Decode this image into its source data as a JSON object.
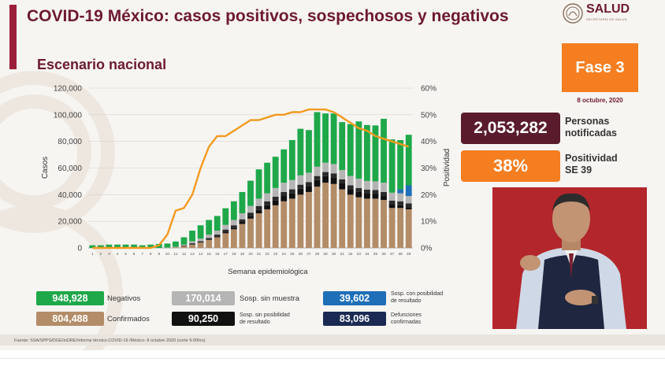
{
  "header": {
    "title": "COVID-19 México: casos positivos, sospechosos y negativos",
    "subtitle": "Escenario nacional",
    "logo_text": "SALUD",
    "logo_subtext": "SECRETARÍA DE SALUD"
  },
  "fase": {
    "label": "Fase 3",
    "date": "8 octubre, 2020"
  },
  "stats": {
    "personas_value": "2,053,282",
    "personas_label_1": "Personas",
    "personas_label_2": "notificadas",
    "positividad_value": "38%",
    "positividad_label_1": "Positividad",
    "positividad_label_2": "SE 39"
  },
  "legend": {
    "negativos": {
      "value": "948,928",
      "label": "Negativos"
    },
    "confirmados": {
      "value": "804,488",
      "label": "Confirmados"
    },
    "sin_muestra": {
      "value": "170,014",
      "label": "Sosp. sin muestra"
    },
    "sin_posibilidad": {
      "value": "90,250",
      "label_1": "Sosp. sin posibilidad",
      "label_2": "de resultado"
    },
    "con_posibilidad": {
      "value": "39,602",
      "label_1": "Sosp. con posibilidad",
      "label_2": "de resultado"
    },
    "defunciones": {
      "value": "83,096",
      "label_1": "Defunciones",
      "label_2": "confirmadas"
    }
  },
  "footer": "Fuente: SSA/SPPS/DGE/InDRE/Informe técnico.COVID-19 /México- 8 octubre 2020 (corte 9:00hrs)",
  "colors": {
    "negativos": "#1ea84a",
    "confirmados": "#b38c68",
    "sin_muestra": "#b5b5b5",
    "sin_posibilidad": "#111111",
    "con_posibilidad": "#1f6fb8",
    "positividad_line": "#f29a1f",
    "maroon": "#6d1a2e",
    "orange": "#f47e20"
  },
  "chart_data": {
    "type": "bar",
    "stacked": true,
    "xlabel": "Semana epidemiológica",
    "ylabel": "Casos",
    "y2label": "Positividad",
    "ylim": [
      0,
      120000
    ],
    "y2lim": [
      0,
      60
    ],
    "y_ticks": [
      "0",
      "20,000",
      "40,000",
      "60,000",
      "80,000",
      "100,000",
      "120,000"
    ],
    "y2_ticks": [
      "0%",
      "10%",
      "20%",
      "30%",
      "40%",
      "50%",
      "60%"
    ],
    "categories": [
      "1",
      "2",
      "3",
      "4",
      "5",
      "6",
      "7",
      "8",
      "9",
      "10",
      "11",
      "12",
      "13",
      "14",
      "15",
      "16",
      "17",
      "18",
      "19",
      "20",
      "21",
      "22",
      "23",
      "24",
      "25",
      "26",
      "27",
      "28",
      "29",
      "30",
      "31",
      "32",
      "33",
      "34",
      "35",
      "36",
      "37",
      "38",
      "39"
    ],
    "series": [
      {
        "name": "Confirmados",
        "values": [
          0,
          0,
          0,
          0,
          0,
          0,
          0,
          0,
          0,
          200,
          500,
          1200,
          2500,
          4000,
          6000,
          8000,
          11000,
          14000,
          18000,
          22000,
          26000,
          29000,
          32000,
          35000,
          37000,
          40000,
          42000,
          46000,
          49000,
          48000,
          44000,
          40000,
          38000,
          37000,
          37000,
          36000,
          30000,
          30000,
          29000
        ]
      },
      {
        "name": "Defunciones confirmadas",
        "values": [
          0,
          0,
          0,
          0,
          0,
          0,
          0,
          0,
          0,
          0,
          0,
          0,
          0,
          0,
          0,
          500,
          800,
          1000,
          1500,
          2000,
          2500,
          3000,
          3500,
          4000,
          4000,
          4500,
          4500,
          5000,
          5000,
          5000,
          4500,
          4000,
          4000,
          3800,
          3500,
          3000,
          2500,
          2000,
          1500
        ]
      },
      {
        "name": "Sosp. sin posibilidad de resultado",
        "values": [
          0,
          0,
          0,
          0,
          0,
          0,
          0,
          0,
          0,
          0,
          0,
          500,
          1000,
          1000,
          1500,
          1500,
          2000,
          2000,
          2000,
          2500,
          3000,
          3000,
          3000,
          3000,
          3000,
          3000,
          3000,
          3000,
          3000,
          3000,
          3000,
          3000,
          3000,
          3000,
          3000,
          3000,
          3000,
          3000,
          3000
        ]
      },
      {
        "name": "Sosp. sin muestra",
        "values": [
          0,
          0,
          0,
          0,
          0,
          0,
          0,
          0,
          0,
          100,
          300,
          800,
          1500,
          2000,
          2500,
          3000,
          3500,
          4000,
          4500,
          5000,
          5500,
          6000,
          6500,
          7000,
          7000,
          7000,
          7000,
          7000,
          7000,
          7000,
          7000,
          7000,
          7000,
          6500,
          6500,
          7000,
          6000,
          6000,
          5500
        ]
      },
      {
        "name": "Sosp. con posibilidad de resultado",
        "values": [
          0,
          0,
          0,
          0,
          0,
          0,
          0,
          0,
          0,
          0,
          0,
          0,
          0,
          0,
          0,
          0,
          0,
          0,
          0,
          0,
          0,
          0,
          0,
          0,
          0,
          0,
          0,
          0,
          0,
          0,
          0,
          0,
          0,
          0,
          0,
          0,
          0,
          3000,
          8000
        ]
      },
      {
        "name": "Negativos",
        "values": [
          2000,
          2000,
          2500,
          2500,
          2500,
          2500,
          2000,
          2500,
          3000,
          3000,
          4000,
          5500,
          8000,
          10000,
          11000,
          11000,
          12500,
          14000,
          16000,
          19000,
          22000,
          23000,
          23500,
          25000,
          30000,
          35000,
          32000,
          41000,
          37000,
          38000,
          36000,
          39000,
          43000,
          42000,
          42000,
          48000,
          40000,
          37000,
          38000
        ]
      }
    ],
    "positividad": {
      "name": "Positividad",
      "values": [
        0,
        0,
        0,
        0,
        0,
        0,
        0,
        0,
        1,
        5,
        14,
        15,
        20,
        30,
        38,
        42,
        42,
        44,
        46,
        48,
        48,
        49,
        50,
        50,
        51,
        51,
        52,
        52,
        52,
        51,
        49,
        47,
        45,
        44,
        42,
        41,
        40,
        39,
        38
      ]
    }
  }
}
